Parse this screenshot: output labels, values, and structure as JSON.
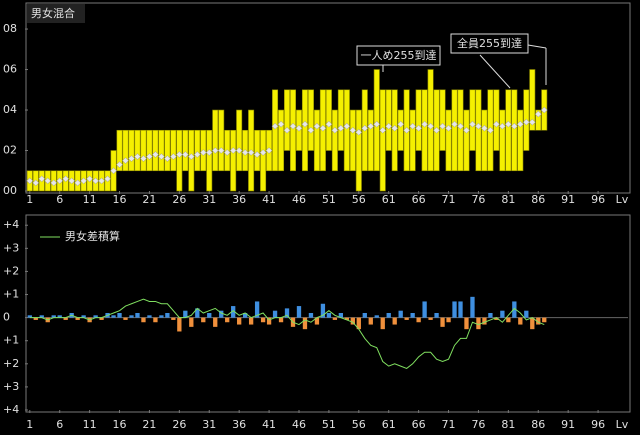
{
  "chart_data": [
    {
      "type": "range_bar",
      "title": "男女混合",
      "x": [
        1,
        2,
        3,
        4,
        5,
        6,
        7,
        8,
        9,
        10,
        11,
        12,
        13,
        14,
        15,
        16,
        17,
        18,
        19,
        20,
        21,
        22,
        23,
        24,
        25,
        26,
        27,
        28,
        29,
        30,
        31,
        32,
        33,
        34,
        35,
        36,
        37,
        38,
        39,
        40,
        41,
        42,
        43,
        44,
        45,
        46,
        47,
        48,
        49,
        50,
        51,
        52,
        53,
        54,
        55,
        56,
        57,
        58,
        59,
        60,
        61,
        62,
        63,
        64,
        65,
        66,
        67,
        68,
        69,
        70,
        71,
        72,
        73,
        74,
        75,
        76,
        77,
        78,
        79,
        80,
        81,
        82,
        83,
        84,
        85,
        86,
        87
      ],
      "low": [
        0,
        0,
        0,
        0,
        0,
        0,
        0,
        0,
        0,
        0,
        0,
        0,
        0,
        0,
        0,
        1,
        1,
        1,
        1,
        1,
        1,
        1,
        1,
        1,
        1,
        0,
        1,
        0,
        1,
        1,
        0,
        1,
        1,
        1,
        0,
        1,
        1,
        0,
        1,
        0,
        1,
        1,
        1,
        2,
        1,
        2,
        1,
        2,
        1,
        1,
        2,
        1,
        2,
        1,
        1,
        0,
        1,
        1,
        1,
        0,
        2,
        1,
        2,
        1,
        1,
        2,
        1,
        1,
        1,
        2,
        1,
        1,
        1,
        1,
        2,
        1,
        1,
        1,
        2,
        1,
        1,
        1,
        1,
        2,
        3,
        3,
        3
      ],
      "high": [
        1,
        1,
        1,
        1,
        1,
        1,
        1,
        1,
        1,
        1,
        1,
        1,
        1,
        1,
        2,
        3,
        3,
        3,
        3,
        3,
        3,
        3,
        3,
        3,
        3,
        3,
        3,
        3,
        3,
        3,
        3,
        4,
        4,
        3,
        3,
        4,
        3,
        4,
        3,
        3,
        3,
        5,
        4,
        5,
        5,
        4,
        5,
        5,
        4,
        5,
        5,
        4,
        5,
        5,
        4,
        4,
        5,
        4,
        6,
        5,
        5,
        5,
        4,
        5,
        4,
        5,
        5,
        6,
        5,
        5,
        4,
        5,
        5,
        4,
        5,
        5,
        4,
        5,
        5,
        4,
        5,
        5,
        4,
        5,
        6,
        4,
        5
      ],
      "average": [
        0.5,
        0.4,
        0.6,
        0.5,
        0.4,
        0.5,
        0.6,
        0.5,
        0.4,
        0.5,
        0.6,
        0.5,
        0.5,
        0.6,
        1.0,
        1.3,
        1.5,
        1.6,
        1.7,
        1.6,
        1.7,
        1.8,
        1.7,
        1.6,
        1.7,
        1.8,
        1.8,
        1.7,
        1.8,
        1.9,
        1.9,
        2.0,
        2.0,
        1.9,
        2.0,
        2.0,
        1.9,
        1.9,
        1.8,
        1.9,
        2.0,
        3.2,
        3.3,
        3.0,
        3.2,
        3.1,
        3.3,
        3.0,
        3.2,
        3.1,
        3.3,
        3.0,
        3.1,
        3.2,
        3.0,
        2.9,
        3.1,
        3.2,
        3.3,
        3.0,
        3.2,
        3.1,
        3.3,
        3.0,
        3.2,
        3.1,
        3.3,
        3.2,
        3.0,
        3.2,
        3.1,
        3.3,
        3.2,
        3.0,
        3.3,
        3.2,
        3.1,
        3.0,
        3.3,
        3.2,
        3.3,
        3.2,
        3.3,
        3.4,
        3.4,
        3.8,
        4.0
      ],
      "bar_color": "#f5f000",
      "marker_color": "#e8e8e8",
      "xlim": [
        0.7,
        101
      ],
      "xticks": [
        1,
        6,
        11,
        16,
        21,
        26,
        31,
        36,
        41,
        46,
        51,
        56,
        61,
        66,
        71,
        76,
        81,
        86,
        91,
        96
      ],
      "xlabel": "Lv",
      "ylim": [
        0,
        8.2
      ],
      "yticks": [
        {
          "value": 0,
          "label": "00"
        },
        {
          "value": 2,
          "label": "02"
        },
        {
          "value": 4,
          "label": "04"
        },
        {
          "value": 6,
          "label": "06"
        },
        {
          "value": 8,
          "label": "08"
        }
      ],
      "annotations": [
        "一人め255到達",
        "全員255到達"
      ]
    },
    {
      "type": "bar_line",
      "x": [
        1,
        2,
        3,
        4,
        5,
        6,
        7,
        8,
        9,
        10,
        11,
        12,
        13,
        14,
        15,
        16,
        17,
        18,
        19,
        20,
        21,
        22,
        23,
        24,
        25,
        26,
        27,
        28,
        29,
        30,
        31,
        32,
        33,
        34,
        35,
        36,
        37,
        38,
        39,
        40,
        41,
        42,
        43,
        44,
        45,
        46,
        47,
        48,
        49,
        50,
        51,
        52,
        53,
        54,
        55,
        56,
        57,
        58,
        59,
        60,
        61,
        62,
        63,
        64,
        65,
        66,
        67,
        68,
        69,
        70,
        71,
        72,
        73,
        74,
        75,
        76,
        77,
        78,
        79,
        80,
        81,
        82,
        83,
        84,
        85,
        86,
        87
      ],
      "bars": [
        0.1,
        -0.1,
        0.1,
        -0.2,
        0.1,
        0.1,
        -0.1,
        0.2,
        -0.1,
        0.1,
        -0.2,
        0.1,
        -0.1,
        0.2,
        0.1,
        0.2,
        -0.1,
        0.1,
        0.2,
        -0.2,
        0.1,
        -0.2,
        0.1,
        0.2,
        -0.1,
        -0.6,
        0.3,
        -0.4,
        0.4,
        -0.2,
        0.2,
        -0.4,
        0.3,
        -0.2,
        0.5,
        -0.3,
        0.2,
        -0.3,
        0.7,
        -0.2,
        -0.3,
        0.3,
        -0.2,
        0.4,
        -0.4,
        0.5,
        -0.5,
        0.2,
        -0.3,
        0.6,
        0.2,
        -0.1,
        0.2,
        -0.1,
        -0.3,
        -0.5,
        0.2,
        -0.3,
        0.1,
        -0.5,
        0.2,
        -0.3,
        0.3,
        -0.1,
        0.2,
        -0.2,
        0.7,
        -0.1,
        0.2,
        -0.4,
        -0.2,
        0.7,
        0.7,
        -0.5,
        0.9,
        -0.5,
        -0.3,
        0.2,
        -0.1,
        0.3,
        -0.2,
        0.7,
        -0.3,
        0.3,
        -0.5,
        -0.3,
        -0.2
      ],
      "positive_color": "#3f8fe0",
      "negative_color": "#f0903c",
      "series": [
        {
          "name": "男女差積算",
          "color": "#80e060",
          "values": [
            0,
            0,
            0,
            -0.1,
            0,
            0,
            0,
            0.1,
            0,
            0,
            -0.1,
            0,
            0,
            0.1,
            0.2,
            0.3,
            0.5,
            0.6,
            0.7,
            0.8,
            0.7,
            0.7,
            0.6,
            0.6,
            0.3,
            0,
            0,
            0.1,
            0.4,
            0.2,
            0.3,
            0.4,
            0.2,
            0.1,
            0.3,
            0.1,
            0.2,
            0,
            0.1,
            0.2,
            -0.1,
            0,
            0,
            0.1,
            -0.2,
            -0.3,
            -0.1,
            -0.2,
            0,
            0.1,
            0.3,
            0.1,
            0,
            -0.1,
            -0.2,
            -0.5,
            -0.9,
            -1.2,
            -1.3,
            -1.9,
            -2.1,
            -2.0,
            -2.1,
            -2.2,
            -2.0,
            -1.7,
            -1.5,
            -1.5,
            -1.8,
            -1.9,
            -1.8,
            -1.2,
            -0.9,
            -0.9,
            -0.2,
            -0.3,
            -0.2,
            -0.1,
            0,
            -0.2,
            0.1,
            0.4,
            0.2,
            -0.1,
            0,
            -0.2,
            -0.3
          ]
        }
      ],
      "xlim": [
        0.7,
        101
      ],
      "xticks": [
        1,
        6,
        11,
        16,
        21,
        26,
        31,
        36,
        41,
        46,
        51,
        56,
        61,
        66,
        71,
        76,
        81,
        86,
        91,
        96
      ],
      "xlabel": "Lv",
      "ylim": [
        -4,
        4.4
      ],
      "yticks": [
        {
          "value": 4,
          "label": "+4"
        },
        {
          "value": 3,
          "label": "+3"
        },
        {
          "value": 2,
          "label": "+2"
        },
        {
          "value": 1,
          "label": "+1"
        },
        0,
        {
          "value": -1,
          "label": "+1"
        },
        {
          "value": -2,
          "label": "+2"
        },
        {
          "value": -3,
          "label": "+3"
        },
        {
          "value": -4,
          "label": "+4"
        }
      ],
      "positive_label_color": "#ffffff",
      "negative_label_color": "#ffff60"
    }
  ]
}
